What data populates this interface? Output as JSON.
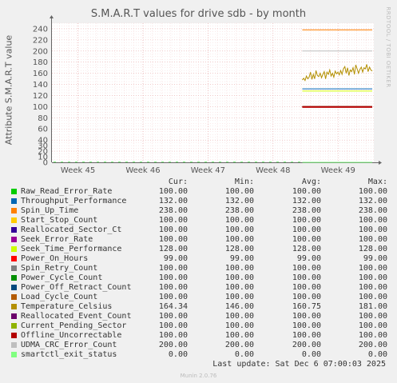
{
  "chart_data": {
    "type": "line",
    "title": "S.M.A.R.T values for drive sdb - by month",
    "ylabel": "Attribute S.M.A.R.T value",
    "side_label": "RRDTOOL / TOBI OETIKER",
    "ylim": [
      0,
      250
    ],
    "y_ticks": [
      "0",
      "10",
      "20",
      "30",
      "40",
      "60",
      "80",
      "100",
      "120",
      "140",
      "160",
      "180",
      "200",
      "220",
      "240"
    ],
    "y_tick_values": [
      0,
      10,
      20,
      30,
      40,
      60,
      80,
      100,
      120,
      140,
      160,
      180,
      200,
      220,
      240
    ],
    "x_ticks": [
      "Week 45",
      "Week 46",
      "Week 47",
      "Week 48",
      "Week 49"
    ],
    "x_tick_weeks": [
      45,
      46,
      47,
      48,
      49
    ],
    "x_range_weeks": [
      44.6,
      49.55
    ],
    "data_start_week": 48.45,
    "grid": true,
    "legend_headers": [
      "Cur:",
      "Min:",
      "Avg:",
      "Max:"
    ],
    "series": [
      {
        "name": "Raw_Read_Error_Rate",
        "color": "#00cc00",
        "cur": "100.00",
        "min": "100.00",
        "avg": "100.00",
        "max": "100.00",
        "value": 100
      },
      {
        "name": "Throughput_Performance",
        "color": "#0066b3",
        "cur": "132.00",
        "min": "132.00",
        "avg": "132.00",
        "max": "132.00",
        "value": 132
      },
      {
        "name": "Spin_Up_Time",
        "color": "#ff8000",
        "cur": "238.00",
        "min": "238.00",
        "avg": "238.00",
        "max": "238.00",
        "value": 238
      },
      {
        "name": "Start_Stop_Count",
        "color": "#ffcc00",
        "cur": "100.00",
        "min": "100.00",
        "avg": "100.00",
        "max": "100.00",
        "value": 100
      },
      {
        "name": "Reallocated_Sector_Ct",
        "color": "#330099",
        "cur": "100.00",
        "min": "100.00",
        "avg": "100.00",
        "max": "100.00",
        "value": 100
      },
      {
        "name": "Seek_Error_Rate",
        "color": "#990099",
        "cur": "100.00",
        "min": "100.00",
        "avg": "100.00",
        "max": "100.00",
        "value": 100
      },
      {
        "name": "Seek_Time_Performance",
        "color": "#ccff00",
        "cur": "128.00",
        "min": "128.00",
        "avg": "128.00",
        "max": "128.00",
        "value": 128
      },
      {
        "name": "Power_On_Hours",
        "color": "#ff0000",
        "cur": " 99.00",
        "min": " 99.00",
        "avg": " 99.00",
        "max": " 99.00",
        "value": 99
      },
      {
        "name": "Spin_Retry_Count",
        "color": "#808080",
        "cur": "100.00",
        "min": "100.00",
        "avg": "100.00",
        "max": "100.00",
        "value": 100
      },
      {
        "name": "Power_Cycle_Count",
        "color": "#008f00",
        "cur": "100.00",
        "min": "100.00",
        "avg": "100.00",
        "max": "100.00",
        "value": 100
      },
      {
        "name": "Power_Off_Retract_Count",
        "color": "#00487d",
        "cur": "100.00",
        "min": "100.00",
        "avg": "100.00",
        "max": "100.00",
        "value": 100
      },
      {
        "name": "Load_Cycle_Count",
        "color": "#b35a00",
        "cur": "100.00",
        "min": "100.00",
        "avg": "100.00",
        "max": "100.00",
        "value": 100
      },
      {
        "name": "Temperature_Celsius",
        "color": "#b38f00",
        "cur": "164.34",
        "min": "146.00",
        "avg": "160.75",
        "max": "181.00",
        "value": 164.34
      },
      {
        "name": "Reallocated_Event_Count",
        "color": "#6b006b",
        "cur": "100.00",
        "min": "100.00",
        "avg": "100.00",
        "max": "100.00",
        "value": 100
      },
      {
        "name": "Current_Pending_Sector",
        "color": "#8fb300",
        "cur": "100.00",
        "min": "100.00",
        "avg": "100.00",
        "max": "100.00",
        "value": 100
      },
      {
        "name": "Offline_Uncorrectable",
        "color": "#b30000",
        "cur": "100.00",
        "min": "100.00",
        "avg": "100.00",
        "max": "100.00",
        "value": 100
      },
      {
        "name": "UDMA_CRC_Error_Count",
        "color": "#bebebe",
        "cur": "200.00",
        "min": "200.00",
        "avg": "200.00",
        "max": "200.00",
        "value": 200
      },
      {
        "name": "smartctl_exit_status",
        "color": "#80ff80",
        "cur": "  0.00",
        "min": "  0.00",
        "avg": "  0.00",
        "max": "  0.00",
        "value": 0
      }
    ],
    "temperature_trace": [
      148,
      151,
      147,
      155,
      150,
      153,
      162,
      149,
      158,
      150,
      165,
      156,
      154,
      160,
      152,
      158,
      163,
      150,
      162,
      158,
      166,
      155,
      160,
      153,
      164,
      159,
      162,
      157,
      165,
      158,
      168,
      172,
      160,
      170,
      156,
      166,
      163,
      170,
      158,
      175,
      168,
      160,
      167,
      171,
      162,
      170,
      168,
      176,
      163,
      171,
      166,
      164
    ]
  },
  "last_update": "Last update: Sat Dec  6 07:00:03 2025",
  "footer": "Munin 2.0.76"
}
